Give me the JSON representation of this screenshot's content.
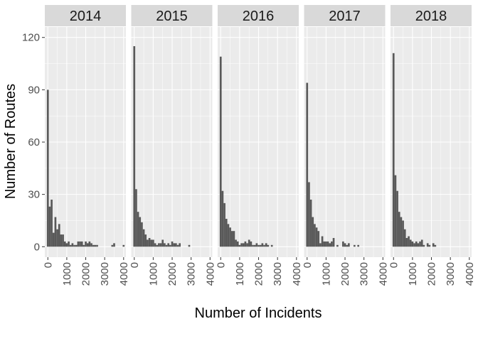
{
  "colors": {
    "panel_bg": "#ebebeb",
    "grid_major": "#ffffff",
    "strip_bg": "#d9d9d9",
    "bar": "#595959",
    "tick": "#333333"
  },
  "chart_data": {
    "type": "bar",
    "subtype": "faceted-histogram",
    "xlabel": "Number of Incidents",
    "ylabel": "Number of Routes",
    "xlim": [
      -160,
      4120
    ],
    "ylim": [
      -6,
      126
    ],
    "x_ticks": [
      0,
      1000,
      2000,
      3000,
      4000
    ],
    "x_tick_labels": [
      "0",
      "1000",
      "2000",
      "3000",
      "4000"
    ],
    "y_ticks": [
      0,
      30,
      60,
      90,
      120
    ],
    "y_tick_labels": [
      "0",
      "30",
      "60",
      "90",
      "120"
    ],
    "bin_width": 100,
    "bin_start": -50,
    "grid": true,
    "legend": "none",
    "facets": [
      {
        "label": "2014",
        "counts": [
          90,
          23,
          27,
          8,
          17,
          10,
          13,
          7,
          7,
          3,
          2,
          3,
          1,
          2,
          1,
          1,
          3,
          3,
          3,
          1,
          3,
          2,
          3,
          2,
          1,
          1,
          1,
          0,
          0,
          0,
          0,
          0,
          0,
          0,
          1,
          2,
          0,
          0,
          0,
          0,
          1
        ]
      },
      {
        "label": "2015",
        "counts": [
          115,
          33,
          20,
          17,
          14,
          10,
          7,
          4,
          5,
          4,
          4,
          2,
          1,
          2,
          2,
          4,
          2,
          1,
          2,
          1,
          3,
          2,
          2,
          1,
          2,
          0,
          0,
          0,
          0,
          1
        ]
      },
      {
        "label": "2016",
        "counts": [
          109,
          32,
          25,
          16,
          13,
          11,
          9,
          9,
          4,
          3,
          1,
          2,
          2,
          3,
          2,
          4,
          3,
          1,
          1,
          2,
          1,
          1,
          2,
          1,
          2,
          1,
          0,
          1
        ]
      },
      {
        "label": "2017",
        "counts": [
          94,
          37,
          27,
          17,
          13,
          11,
          9,
          2,
          6,
          3,
          3,
          3,
          2,
          3,
          5,
          0,
          1,
          0,
          0,
          3,
          2,
          1,
          2,
          0,
          0,
          1,
          0,
          1
        ]
      },
      {
        "label": "2018",
        "counts": [
          111,
          41,
          32,
          20,
          17,
          15,
          10,
          5,
          6,
          4,
          3,
          2,
          3,
          2,
          3,
          4,
          1,
          0,
          2,
          1,
          0,
          2,
          1
        ]
      }
    ]
  }
}
